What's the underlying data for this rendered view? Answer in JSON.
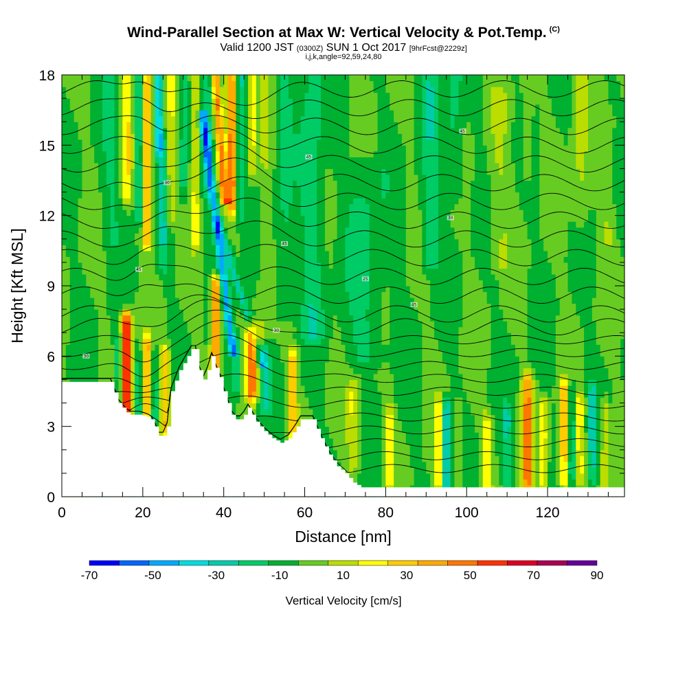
{
  "header": {
    "title": "Wind-Parallel Section at Max W: Vertical Velocity & Pot.Temp.",
    "copyright": "(C)",
    "valid_prefix": "Valid 1200 JST",
    "valid_utc": "(0300Z)",
    "valid_date": "SUN 1 Oct 2017",
    "forecast": "[9hrFcst@2229z]",
    "params": "i,j,k,angle=92,59,24,80"
  },
  "colors": {
    "background": "#ffffff",
    "terrain": "#ffffff",
    "contour": "#000000",
    "palette": [
      "#0000ff",
      "#0066ff",
      "#00aaff",
      "#00dddd",
      "#00ccaa",
      "#00cc66",
      "#00b030",
      "#66cc22",
      "#bbdd00",
      "#ffff00",
      "#ffcc00",
      "#ffaa00",
      "#ff7700",
      "#ff3300",
      "#dd0022",
      "#aa0055",
      "#660099"
    ]
  },
  "chart_data": {
    "type": "heatmap",
    "title": "Wind-Parallel Section at Max W: Vertical Velocity & Pot.Temp.",
    "xlabel": "Distance [nm]",
    "ylabel": "Height [Kft MSL]",
    "xlim": [
      0,
      139
    ],
    "ylim": [
      0,
      18
    ],
    "x_ticks": [
      0,
      20,
      40,
      60,
      80,
      100,
      120
    ],
    "y_ticks": [
      0,
      3,
      6,
      9,
      12,
      15,
      18
    ],
    "x_tick_labels": [
      "0",
      "20",
      "40",
      "60",
      "80",
      "100",
      "120"
    ],
    "y_tick_labels": [
      "0",
      "3",
      "6",
      "9",
      "12",
      "15",
      "18"
    ],
    "x_minor_step": 5,
    "y_minor_step": 1,
    "colorbar": {
      "title": "Vertical Velocity [cm/s]",
      "min": -70,
      "max": 90,
      "step": 10,
      "tick_values": [
        -70,
        -50,
        -30,
        -10,
        10,
        30,
        50,
        70,
        90
      ],
      "tick_labels": [
        "-70",
        "-50",
        "-30",
        "-10",
        "10",
        "30",
        "50",
        "70",
        "90"
      ]
    },
    "background_w": 0,
    "w_features": [
      {
        "x": 16,
        "y0": 3.6,
        "y1": 7.5,
        "w": 80,
        "width": 1.2
      },
      {
        "x": 14,
        "y0": 3.8,
        "y1": 6.5,
        "w": -20,
        "width": 1.0
      },
      {
        "x": 21,
        "y0": 3.5,
        "y1": 6.5,
        "w": 45,
        "width": 1.0
      },
      {
        "x": 25.5,
        "y0": 3.0,
        "y1": 6.0,
        "w": 40,
        "width": 1.2
      },
      {
        "x": 23,
        "y0": 3.4,
        "y1": 6.0,
        "w": -20,
        "width": 1.0
      },
      {
        "x": 19,
        "y0": 3.5,
        "y1": 6.0,
        "w": -15,
        "width": 1.0
      },
      {
        "x": 38,
        "y0": 5.5,
        "y1": 9.0,
        "w": 60,
        "width": 1.2
      },
      {
        "x": 47,
        "y0": 4.5,
        "y1": 7.0,
        "w": 55,
        "width": 1.5
      },
      {
        "x": 57,
        "y0": 2.8,
        "y1": 6.0,
        "w": 35,
        "width": 1.2
      },
      {
        "x": 50,
        "y0": 4.0,
        "y1": 6.0,
        "w": -20,
        "width": 1.5
      },
      {
        "x": 43,
        "y0": 4.8,
        "y1": 6.5,
        "w": -20,
        "width": 1.2
      },
      {
        "x": 72,
        "y0": 1.5,
        "y1": 4.5,
        "w": 20,
        "width": 1.5
      },
      {
        "x": 81,
        "y0": 0.8,
        "y1": 3.5,
        "w": 25,
        "width": 1.0
      },
      {
        "x": 93,
        "y0": 0.5,
        "y1": 3.8,
        "w": 25,
        "width": 1.0
      },
      {
        "x": 95,
        "y0": 0.5,
        "y1": 3.8,
        "w": -40,
        "width": 0.8
      },
      {
        "x": 98,
        "y0": 0.5,
        "y1": 3.5,
        "w": 15,
        "width": 1.0
      },
      {
        "x": 105,
        "y0": 0.5,
        "y1": 3.2,
        "w": 25,
        "width": 1.2
      },
      {
        "x": 110,
        "y0": 0.5,
        "y1": 3.5,
        "w": -20,
        "width": 1.0
      },
      {
        "x": 115,
        "y0": 0.5,
        "y1": 4.8,
        "w": 55,
        "width": 1.2
      },
      {
        "x": 119,
        "y0": 0.5,
        "y1": 3.8,
        "w": 25,
        "width": 1.0
      },
      {
        "x": 124,
        "y0": 0.8,
        "y1": 4.5,
        "w": 40,
        "width": 1.2
      },
      {
        "x": 126,
        "y0": 1.0,
        "y1": 4.5,
        "w": -25,
        "width": 0.8
      },
      {
        "x": 128,
        "y0": 1.0,
        "y1": 4.0,
        "w": 25,
        "width": 1.0
      },
      {
        "x": 131,
        "y0": 1.0,
        "y1": 4.5,
        "w": -25,
        "width": 0.8
      },
      {
        "x": 134,
        "y0": 0.5,
        "y1": 3.8,
        "w": 20,
        "width": 1.0
      },
      {
        "x": 12,
        "y0": 11.0,
        "y1": 18.0,
        "w": -10,
        "width": 2.5
      },
      {
        "x": 16,
        "y0": 13.0,
        "y1": 18.0,
        "w": 30,
        "width": 1.2
      },
      {
        "x": 19,
        "y0": 12.0,
        "y1": 18.0,
        "w": -25,
        "width": 1.0
      },
      {
        "x": 21,
        "y0": 11.0,
        "y1": 18.0,
        "w": 45,
        "width": 1.0
      },
      {
        "x": 24,
        "y0": 15.0,
        "y1": 18.0,
        "w": -45,
        "width": 0.8
      },
      {
        "x": 25,
        "y0": 10.0,
        "y1": 15.0,
        "w": -20,
        "width": 1.0
      },
      {
        "x": 27,
        "y0": 12.0,
        "y1": 18.0,
        "w": 20,
        "width": 1.0
      },
      {
        "x": 30,
        "y0": 13.0,
        "y1": 18.0,
        "w": -15,
        "width": 1.0
      },
      {
        "x": 33,
        "y0": 11.0,
        "y1": 18.0,
        "w": 25,
        "width": 1.0
      },
      {
        "x": 36,
        "y0": 13.0,
        "y1": 18.0,
        "w": -15,
        "width": 1.0
      },
      {
        "x": 42,
        "y0": 12.5,
        "y1": 18.0,
        "w": 55,
        "width": 1.2
      },
      {
        "x": 44,
        "y0": 12.0,
        "y1": 18.0,
        "w": -20,
        "width": 1.0
      },
      {
        "x": 47,
        "y0": 14.0,
        "y1": 18.0,
        "w": 25,
        "width": 1.0
      },
      {
        "x": 50,
        "y0": 7.0,
        "y1": 18.0,
        "w": 10,
        "width": 1.5
      },
      {
        "x": 55,
        "y0": 8.0,
        "y1": 18.0,
        "w": -12,
        "width": 2.0
      },
      {
        "x": 62,
        "y0": 7.0,
        "y1": 18.0,
        "w": -15,
        "width": 3.0
      },
      {
        "x": 75,
        "y0": 6.0,
        "y1": 14.0,
        "w": -12,
        "width": 5.0
      },
      {
        "x": 91,
        "y0": 10.0,
        "y1": 18.0,
        "w": -15,
        "width": 2.5
      },
      {
        "x": 97,
        "y0": 13.0,
        "y1": 18.0,
        "w": -15,
        "width": 2.0
      },
      {
        "x": 108,
        "y0": 10.0,
        "y1": 17.0,
        "w": 10,
        "width": 2.5
      },
      {
        "x": 115,
        "y0": 14.0,
        "y1": 18.0,
        "w": 10,
        "width": 1.5
      },
      {
        "x": 128,
        "y0": 12.0,
        "y1": 18.0,
        "w": 12,
        "width": 2.0
      },
      {
        "x": 135,
        "y0": 11.0,
        "y1": 16.0,
        "w": 10,
        "width": 1.5
      }
    ],
    "w_slanted": [
      {
        "x0": 35,
        "y0": 16.0,
        "x1": 42,
        "y1": 6.5,
        "w": -45,
        "width": 1.0
      },
      {
        "x0": 39,
        "y0": 11.5,
        "x1": 49,
        "y1": 6.0,
        "w": -25,
        "width": 1.2
      },
      {
        "x0": 38,
        "y0": 18.0,
        "x1": 40,
        "y1": 13.0,
        "w": 50,
        "width": 1.0
      }
    ],
    "terrain": [
      [
        0,
        4.9
      ],
      [
        12,
        4.9
      ],
      [
        14,
        4.0
      ],
      [
        16,
        3.6
      ],
      [
        17,
        3.5
      ],
      [
        19,
        3.5
      ],
      [
        21,
        3.4
      ],
      [
        22,
        3.3
      ],
      [
        23,
        3.0
      ],
      [
        24,
        2.6
      ],
      [
        25,
        2.6
      ],
      [
        26,
        3.0
      ],
      [
        27,
        4.5
      ],
      [
        29,
        5.4
      ],
      [
        31,
        6.0
      ],
      [
        32,
        6.3
      ],
      [
        33,
        6.3
      ],
      [
        34,
        5.4
      ],
      [
        35,
        5.0
      ],
      [
        36,
        5.4
      ],
      [
        37,
        6.0
      ],
      [
        38,
        5.5
      ],
      [
        39,
        5.1
      ],
      [
        40,
        4.5
      ],
      [
        41,
        4.0
      ],
      [
        42,
        3.5
      ],
      [
        43,
        3.3
      ],
      [
        44,
        3.3
      ],
      [
        45,
        3.5
      ],
      [
        46,
        3.8
      ],
      [
        48,
        3.2
      ],
      [
        50,
        2.8
      ],
      [
        52,
        2.5
      ],
      [
        54,
        2.3
      ],
      [
        56,
        2.5
      ],
      [
        58,
        3.0
      ],
      [
        59,
        3.3
      ],
      [
        62,
        3.3
      ],
      [
        64,
        2.5
      ],
      [
        66,
        1.8
      ],
      [
        68,
        1.3
      ],
      [
        70,
        1.0
      ],
      [
        72,
        0.6
      ],
      [
        74,
        0.4
      ],
      [
        139,
        0.4
      ]
    ],
    "theta_levels_K": [
      292,
      294,
      296,
      298,
      300,
      302,
      304,
      306,
      308,
      310,
      312,
      314,
      316,
      318,
      320,
      322,
      324,
      326,
      328,
      330,
      332,
      334,
      336,
      338,
      340
    ],
    "theta_label_marks": [
      {
        "x": 6,
        "text": "30"
      },
      {
        "x": 19,
        "text": "45"
      },
      {
        "x": 26,
        "text": "30"
      },
      {
        "x": 53,
        "text": "30"
      },
      {
        "x": 55,
        "text": "45"
      },
      {
        "x": 61,
        "text": "45"
      },
      {
        "x": 87,
        "text": "45"
      },
      {
        "x": 96,
        "text": "30"
      },
      {
        "x": 99,
        "text": "45"
      },
      {
        "x": 75,
        "text": "25"
      }
    ]
  }
}
